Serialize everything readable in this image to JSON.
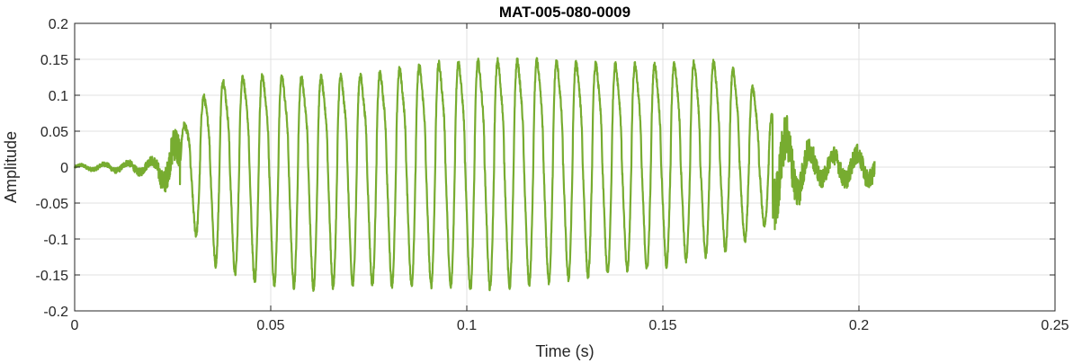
{
  "chart_data": {
    "type": "line",
    "title": "MAT-005-080-0009",
    "xlabel": "Time (s)",
    "ylabel": "Amplitude",
    "xlim": [
      0,
      0.25
    ],
    "ylim": [
      -0.2,
      0.2
    ],
    "xticks": [
      0,
      0.05,
      0.1,
      0.15,
      0.2,
      0.25
    ],
    "xtick_labels": [
      "0",
      "0.05",
      "0.1",
      "0.15",
      "0.2",
      "0.25"
    ],
    "yticks": [
      0.2,
      0.15,
      0.1,
      0.05,
      0,
      -0.05,
      -0.1,
      -0.15,
      -0.2
    ],
    "ytick_labels": [
      "0.2",
      "0.15",
      "0.1",
      "0.05",
      "0",
      "-0.05",
      "-0.1",
      "-0.15",
      "-0.2"
    ],
    "grid": true,
    "line_color": "#77ac30",
    "series": [
      {
        "signal_start": 0,
        "signal_end": 0.204,
        "envelope": {
          "t": [
            0,
            0.012,
            0.02,
            0.026,
            0.03,
            0.036,
            0.045,
            0.06,
            0.075,
            0.09,
            0.105,
            0.12,
            0.135,
            0.15,
            0.165,
            0.172,
            0.178,
            0.184,
            0.19,
            0.198,
            0.204
          ],
          "pos": [
            0.003,
            0.005,
            0.01,
            0.04,
            0.08,
            0.12,
            0.13,
            0.125,
            0.13,
            0.145,
            0.15,
            0.15,
            0.145,
            0.145,
            0.15,
            0.12,
            0.07,
            0.045,
            0.02,
            0.025,
            0.03
          ],
          "neg": [
            0.003,
            0.008,
            0.012,
            0.05,
            0.075,
            0.12,
            0.14,
            0.15,
            0.145,
            0.145,
            0.15,
            0.14,
            0.13,
            0.12,
            0.1,
            0.085,
            0.065,
            0.04,
            0.02,
            0.02,
            0.015
          ]
        },
        "cycles_start": 0.027,
        "cycles_end": 0.178,
        "cycle_period": 0.005
      }
    ]
  }
}
